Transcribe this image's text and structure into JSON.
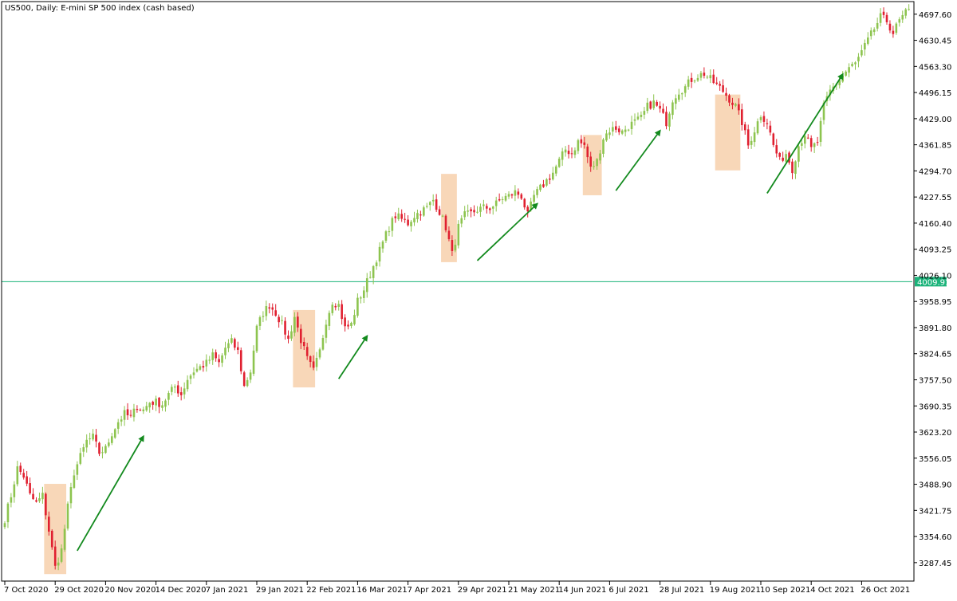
{
  "colors": {
    "background": "#ffffff",
    "bull_candle": "#8dc44f",
    "bear_candle": "#e02030",
    "wick": "#555555",
    "axis": "#000000",
    "level_line": "#1bb37a",
    "level_label_bg": "#1bb37a",
    "level_label_text": "#ffffff",
    "highlight_box": "#f6c9a0",
    "arrow": "#138a1e"
  },
  "chart_data": {
    "type": "candlestick",
    "title": "US500, Daily:  E-mini SP 500 index (cash based)",
    "xlabel": "",
    "ylabel": "",
    "ylim": [
      3240,
      4730
    ],
    "grid": false,
    "yticks": [
      "4697.60",
      "4630.45",
      "4563.30",
      "4496.15",
      "4429.00",
      "4361.85",
      "4294.70",
      "4227.55",
      "4160.40",
      "4093.25",
      "4026.10",
      "3958.95",
      "3891.80",
      "3824.65",
      "3757.50",
      "3690.35",
      "3623.20",
      "3556.05",
      "3488.90",
      "3421.75",
      "3354.60",
      "3287.45"
    ],
    "ytick_values": [
      4697.6,
      4630.45,
      4563.3,
      4496.15,
      4429.0,
      4361.85,
      4294.7,
      4227.55,
      4160.4,
      4093.25,
      4026.1,
      3958.95,
      3891.8,
      3824.65,
      3757.5,
      3690.35,
      3623.2,
      3556.05,
      3488.9,
      3421.75,
      3354.6,
      3287.45
    ],
    "xticks": [
      "7 Oct 2020",
      "29 Oct 2020",
      "20 Nov 2020",
      "14 Dec 2020",
      "7 Jan 2021",
      "29 Jan 2021",
      "22 Feb 2021",
      "16 Mar 2021",
      "7 Apr 2021",
      "29 Apr 2021",
      "21 May 2021",
      "14 Jun 2021",
      "6 Jul 2021",
      "28 Jul 2021",
      "19 Aug 2021",
      "10 Sep 2021",
      "4 Oct 2021",
      "26 Oct 2021"
    ],
    "xtick_bar_index": [
      0,
      16,
      32,
      48,
      64,
      80,
      96,
      112,
      128,
      144,
      160,
      176,
      192,
      208,
      224,
      240,
      256,
      272
    ],
    "anchors": [
      [
        0,
        3400
      ],
      [
        2,
        3460
      ],
      [
        4,
        3530
      ],
      [
        6,
        3510
      ],
      [
        8,
        3460
      ],
      [
        10,
        3440
      ],
      [
        12,
        3460
      ],
      [
        14,
        3370
      ],
      [
        16,
        3275
      ],
      [
        18,
        3320
      ],
      [
        20,
        3430
      ],
      [
        22,
        3520
      ],
      [
        24,
        3560
      ],
      [
        26,
        3600
      ],
      [
        28,
        3610
      ],
      [
        30,
        3570
      ],
      [
        32,
        3580
      ],
      [
        34,
        3620
      ],
      [
        36,
        3650
      ],
      [
        38,
        3670
      ],
      [
        40,
        3660
      ],
      [
        42,
        3690
      ],
      [
        44,
        3680
      ],
      [
        46,
        3700
      ],
      [
        48,
        3700
      ],
      [
        50,
        3695
      ],
      [
        52,
        3720
      ],
      [
        54,
        3740
      ],
      [
        56,
        3720
      ],
      [
        58,
        3760
      ],
      [
        60,
        3780
      ],
      [
        62,
        3790
      ],
      [
        64,
        3800
      ],
      [
        66,
        3820
      ],
      [
        68,
        3800
      ],
      [
        70,
        3840
      ],
      [
        72,
        3855
      ],
      [
        74,
        3830
      ],
      [
        76,
        3740
      ],
      [
        78,
        3780
      ],
      [
        80,
        3890
      ],
      [
        82,
        3930
      ],
      [
        84,
        3950
      ],
      [
        86,
        3930
      ],
      [
        88,
        3900
      ],
      [
        90,
        3860
      ],
      [
        92,
        3920
      ],
      [
        94,
        3860
      ],
      [
        96,
        3810
      ],
      [
        98,
        3780
      ],
      [
        100,
        3830
      ],
      [
        102,
        3910
      ],
      [
        104,
        3960
      ],
      [
        106,
        3950
      ],
      [
        108,
        3890
      ],
      [
        110,
        3900
      ],
      [
        112,
        3960
      ],
      [
        114,
        3990
      ],
      [
        116,
        4030
      ],
      [
        118,
        4070
      ],
      [
        120,
        4110
      ],
      [
        122,
        4150
      ],
      [
        124,
        4180
      ],
      [
        126,
        4170
      ],
      [
        128,
        4160
      ],
      [
        130,
        4180
      ],
      [
        132,
        4190
      ],
      [
        134,
        4200
      ],
      [
        136,
        4220
      ],
      [
        138,
        4190
      ],
      [
        140,
        4150
      ],
      [
        142,
        4080
      ],
      [
        144,
        4150
      ],
      [
        146,
        4180
      ],
      [
        148,
        4185
      ],
      [
        150,
        4195
      ],
      [
        152,
        4200
      ],
      [
        154,
        4200
      ],
      [
        156,
        4210
      ],
      [
        158,
        4225
      ],
      [
        160,
        4230
      ],
      [
        162,
        4240
      ],
      [
        164,
        4230
      ],
      [
        166,
        4180
      ],
      [
        168,
        4230
      ],
      [
        170,
        4250
      ],
      [
        172,
        4270
      ],
      [
        174,
        4290
      ],
      [
        176,
        4320
      ],
      [
        178,
        4350
      ],
      [
        180,
        4340
      ],
      [
        182,
        4370
      ],
      [
        184,
        4360
      ],
      [
        186,
        4300
      ],
      [
        188,
        4320
      ],
      [
        190,
        4380
      ],
      [
        192,
        4400
      ],
      [
        194,
        4405
      ],
      [
        196,
        4395
      ],
      [
        198,
        4410
      ],
      [
        200,
        4420
      ],
      [
        202,
        4430
      ],
      [
        204,
        4460
      ],
      [
        206,
        4470
      ],
      [
        208,
        4450
      ],
      [
        210,
        4420
      ],
      [
        212,
        4480
      ],
      [
        214,
        4500
      ],
      [
        216,
        4510
      ],
      [
        218,
        4530
      ],
      [
        220,
        4540
      ],
      [
        222,
        4545
      ],
      [
        224,
        4530
      ],
      [
        226,
        4515
      ],
      [
        228,
        4500
      ],
      [
        230,
        4480
      ],
      [
        232,
        4460
      ],
      [
        234,
        4420
      ],
      [
        236,
        4360
      ],
      [
        238,
        4400
      ],
      [
        240,
        4440
      ],
      [
        242,
        4420
      ],
      [
        244,
        4360
      ],
      [
        246,
        4320
      ],
      [
        248,
        4340
      ],
      [
        250,
        4300
      ],
      [
        252,
        4360
      ],
      [
        254,
        4390
      ],
      [
        256,
        4350
      ],
      [
        258,
        4370
      ],
      [
        260,
        4460
      ],
      [
        262,
        4500
      ],
      [
        264,
        4520
      ],
      [
        266,
        4540
      ],
      [
        268,
        4560
      ],
      [
        270,
        4570
      ],
      [
        272,
        4600
      ],
      [
        274,
        4630
      ],
      [
        276,
        4660
      ],
      [
        278,
        4690
      ],
      [
        280,
        4680
      ],
      [
        282,
        4650
      ],
      [
        284,
        4680
      ],
      [
        286,
        4700
      ]
    ],
    "level": {
      "value": 4009.91,
      "label": "4009.91"
    },
    "highlight_ranges": [
      {
        "from_bar": 13,
        "to_bar": 19,
        "low": 3258,
        "high": 3490
      },
      {
        "from_bar": 92,
        "to_bar": 98,
        "low": 3738,
        "high": 3937
      },
      {
        "from_bar": 139,
        "to_bar": 143,
        "low": 4060,
        "high": 4287
      },
      {
        "from_bar": 184,
        "to_bar": 189,
        "low": 4232,
        "high": 4387
      },
      {
        "from_bar": 226,
        "to_bar": 233,
        "low": 4296,
        "high": 4491
      }
    ],
    "arrows": [
      {
        "from_bar": 23,
        "from_value": 3318,
        "to_bar": 44,
        "to_value": 3612
      },
      {
        "from_bar": 106,
        "from_value": 3760,
        "to_bar": 115,
        "to_value": 3870
      },
      {
        "from_bar": 150,
        "from_value": 4064,
        "to_bar": 169,
        "to_value": 4210
      },
      {
        "from_bar": 194,
        "from_value": 4244,
        "to_bar": 208,
        "to_value": 4398
      },
      {
        "from_bar": 242,
        "from_value": 4237,
        "to_bar": 266,
        "to_value": 4543
      }
    ],
    "bar_count": 288
  }
}
